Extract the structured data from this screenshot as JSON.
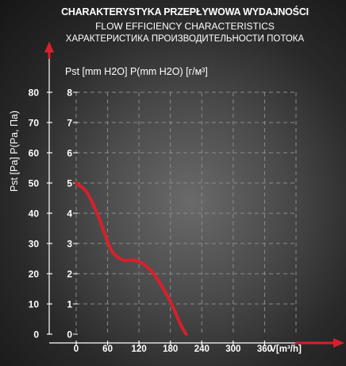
{
  "titles": {
    "line1": "CHARAKTERYSTYKA PRZEPŁYWOWA WYDAJNOŚCI",
    "line2": "FLOW EFFICIENCY CHARACTERISTICS",
    "line3": "ХАРАКТЕРИСТИКА ПРОИЗВОДИТЕЛЬНОСТИ ПОТОКА"
  },
  "chart_data": {
    "type": "line",
    "ylabel": "Pst [Pa] P(Pa, Па)",
    "ylabel2": "Pst [mm H2O] P(mm H2O) [г/м³]",
    "xlabel": "V[m³/h]",
    "x_ticks": [
      "0",
      "60",
      "120",
      "180",
      "240",
      "300",
      "360"
    ],
    "y_ticks": [
      "0",
      "10",
      "20",
      "30",
      "40",
      "50",
      "60",
      "70",
      "80"
    ],
    "y2_ticks": [
      "0",
      "1",
      "2",
      "3",
      "4",
      "5",
      "6",
      "7",
      "8"
    ],
    "xlim": [
      0,
      420
    ],
    "ylim": [
      0,
      80
    ],
    "grid": true,
    "series": [
      {
        "color": "#d8202a",
        "x": [
          0,
          20,
          40,
          55,
          70,
          90,
          110,
          130,
          150,
          170,
          185,
          200,
          210
        ],
        "y": [
          50,
          47,
          40,
          33,
          27,
          24.5,
          24.5,
          23,
          19.5,
          14,
          9,
          3,
          0
        ]
      }
    ]
  },
  "colors": {
    "curve": "#d8202a",
    "arrow": "#d8202a",
    "grid": "#8a8a8a"
  }
}
